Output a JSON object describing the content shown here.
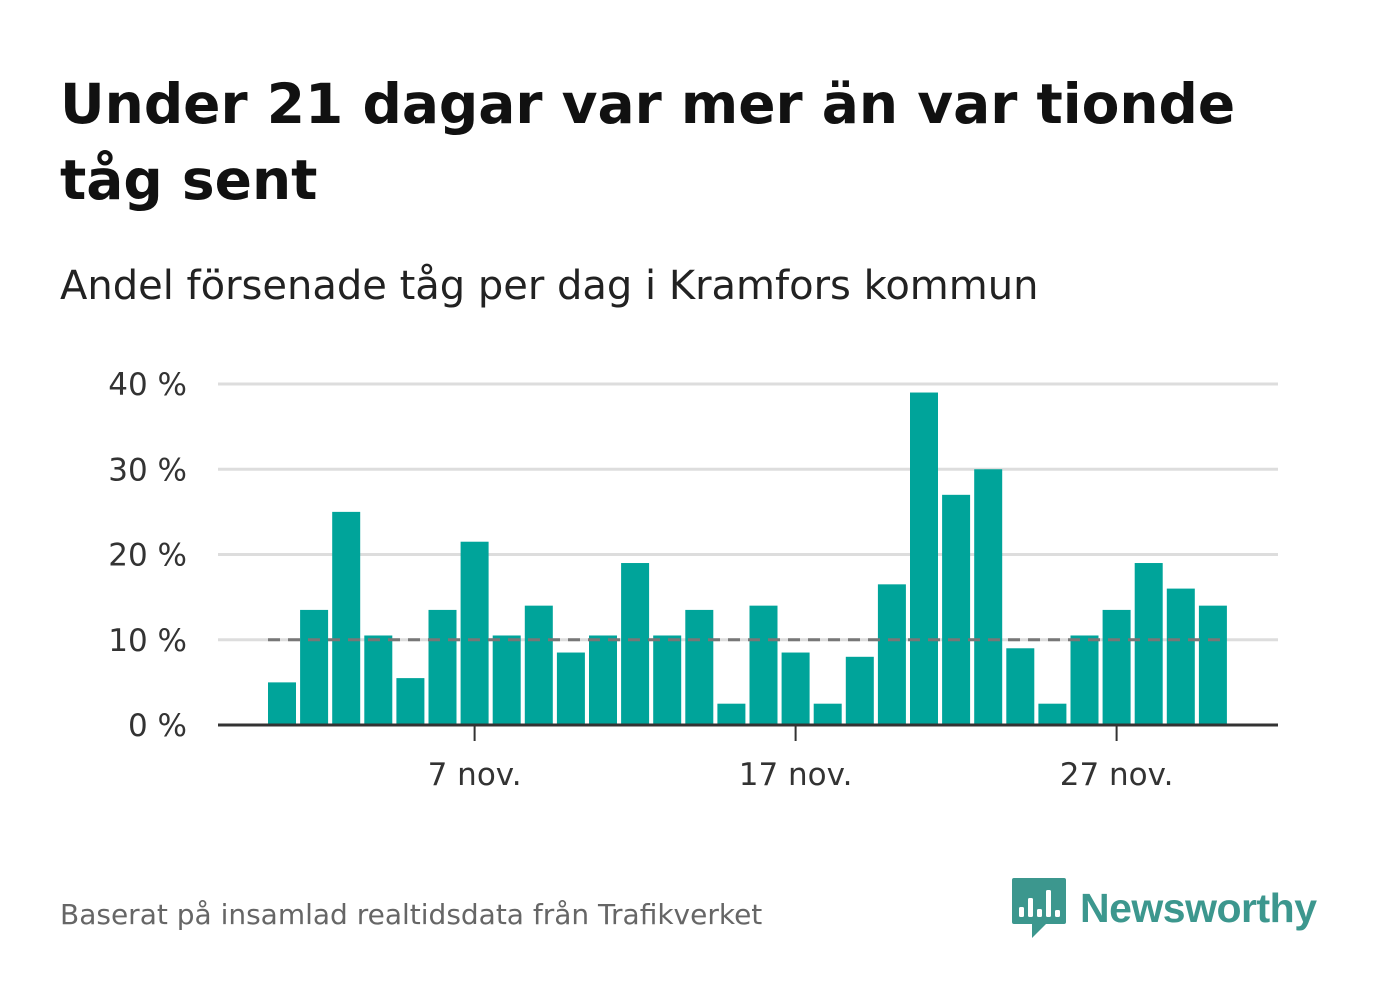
{
  "title": "Under 21 dagar var mer än var tionde tåg sent",
  "subtitle": "Andel försenade tåg per dag i Kramfors kommun",
  "source": "Baserat på insamlad realtidsdata från Trafikverket",
  "brand": {
    "name": "Newsworthy",
    "icon": "newsworthy-logo-icon",
    "color": "#3c978e"
  },
  "colors": {
    "bar": "#00a49a",
    "grid": "#dddddd",
    "axis": "#333333",
    "reference": "#777777"
  },
  "chart_data": {
    "type": "bar",
    "x_unit": "day of November",
    "x": [
      1,
      2,
      3,
      4,
      5,
      6,
      7,
      8,
      9,
      10,
      11,
      12,
      13,
      14,
      15,
      16,
      17,
      18,
      19,
      20,
      21,
      22,
      23,
      24,
      25,
      26,
      27,
      28,
      29,
      30
    ],
    "values": [
      5,
      13.5,
      25,
      10.5,
      5.5,
      13.5,
      21.5,
      10.5,
      14,
      8.5,
      10.5,
      19,
      10.5,
      13.5,
      2.5,
      14,
      8.5,
      2.5,
      8,
      16.5,
      39,
      27,
      30,
      9,
      2.5,
      10.5,
      13.5,
      19,
      16,
      14
    ],
    "ylim": [
      0,
      40
    ],
    "yticks": [
      0,
      10,
      20,
      30,
      40
    ],
    "ytick_labels": [
      "0 %",
      "10 %",
      "20 %",
      "30 %",
      "40 %"
    ],
    "xticks": [
      7,
      17,
      27
    ],
    "xtick_labels": [
      "7 nov.",
      "17 nov.",
      "27 nov."
    ],
    "reference_line": {
      "value": 10,
      "style": "dashed"
    },
    "grid": true,
    "legend": false
  }
}
